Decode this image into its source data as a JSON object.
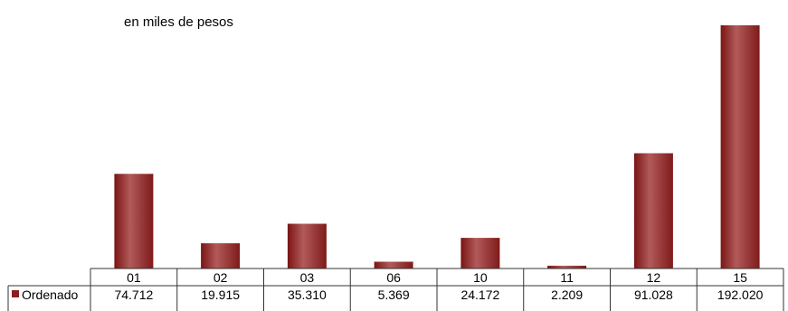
{
  "chart_data": {
    "type": "bar",
    "subtitle": "en miles de pesos",
    "categories": [
      "01",
      "02",
      "03",
      "06",
      "10",
      "11",
      "12",
      "15"
    ],
    "series": [
      {
        "name": "Ordenado",
        "values": [
          74712,
          19915,
          35310,
          5369,
          24172,
          2209,
          91028,
          192020
        ],
        "value_labels": [
          "74.712",
          "19.915",
          "35.310",
          "5.369",
          "24.172",
          "2.209",
          "91.028",
          "192.020"
        ],
        "color": "#8b1e1e"
      }
    ],
    "legend": "in data table",
    "grid": false,
    "data_table": true
  }
}
